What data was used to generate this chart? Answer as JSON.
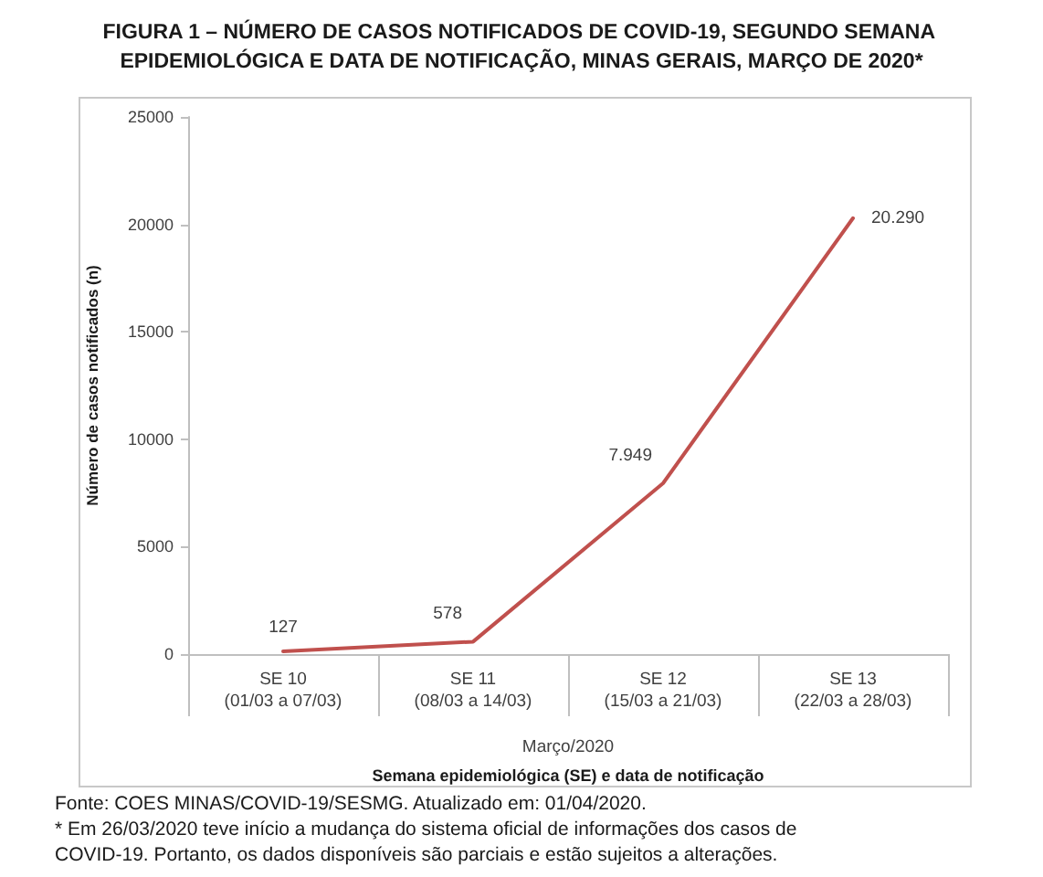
{
  "chart_data": {
    "type": "line",
    "title": "FIGURA 1 – NÚMERO DE CASOS NOTIFICADOS DE COVID-19, SEGUNDO SEMANA EPIDEMIOLÓGICA E DATA DE NOTIFICAÇÃO, MINAS GERAIS, MARÇO DE 2020*",
    "xlabel": "Semana epidemiológica (SE) e data de notificação",
    "ylabel": "Número de casos notificados (n)",
    "categories": [
      "SE 10\n(01/03 a 07/03)",
      "SE 11\n(08/03 a 14/03)",
      "SE 12\n(15/03 a 21/03)",
      "SE 13\n(22/03 a 28/03)"
    ],
    "values": [
      127,
      578,
      7949,
      20290
    ],
    "value_labels": [
      "127",
      "578",
      "7.949",
      "20.290"
    ],
    "color": "#c0504d",
    "marker": "none",
    "ylim": [
      0,
      25000
    ],
    "yticks": [
      0,
      5000,
      10000,
      15000,
      20000,
      25000
    ],
    "annotations": [
      "Março/2020",
      "Fonte: COES MINAS/COVID-19/SESMG. Atualizado em: 01/04/2020.",
      "* Em 26/03/2020 teve início a mudança do sistema oficial de informações dos casos de COVID-19. Portanto, os dados disponíveis são parciais e estão sujeitos a alterações."
    ]
  }
}
